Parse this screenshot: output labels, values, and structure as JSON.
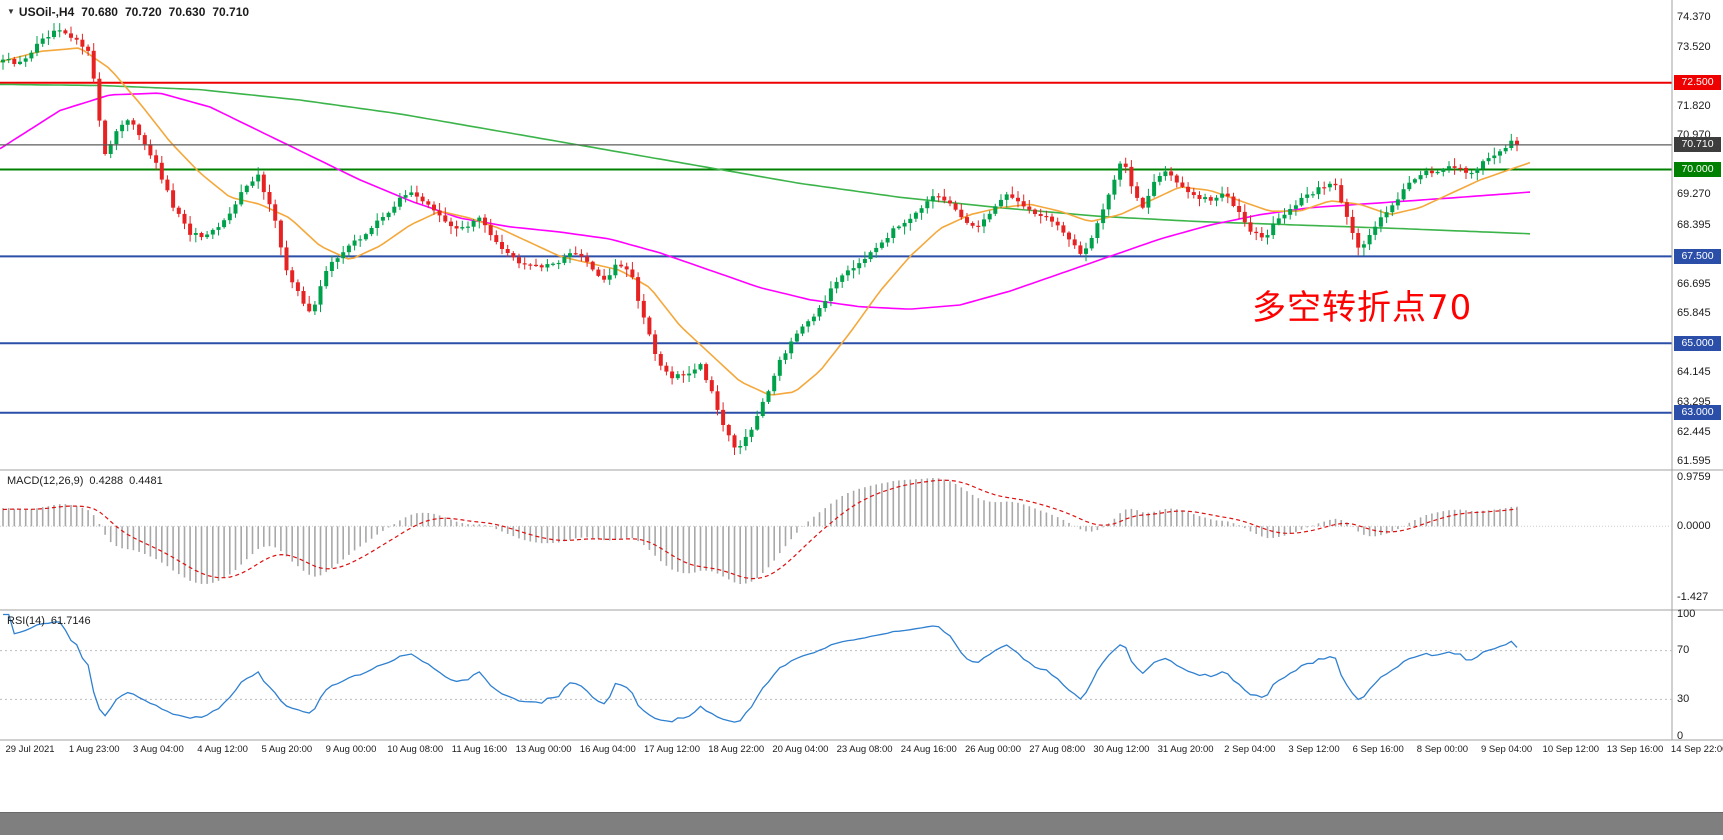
{
  "symbol_bar": {
    "symbol": "USOil-,H4",
    "open": "70.680",
    "high": "70.720",
    "low": "70.630",
    "close": "70.710"
  },
  "macd_panel": {
    "label": "MACD(12,26,9)",
    "values": [
      "0.4288",
      "0.4481"
    ]
  },
  "rsi_panel": {
    "label": "RSI(14)",
    "value": "61.7146"
  },
  "annotation": {
    "text": "多空转折点70",
    "color": "#ff0000"
  },
  "chart_data": {
    "type": "candlestick",
    "symbol": "USOil",
    "timeframe": "H4",
    "current_bar": {
      "open": 70.68,
      "high": 70.72,
      "low": 70.63,
      "close": 70.71
    },
    "price_range": {
      "min": 61.35,
      "max": 74.88
    },
    "num_candles": 268,
    "up_color": "#00a14b",
    "down_color": "#e62222",
    "price_axis_labels": [
      "74.370",
      "73.520",
      "71.820",
      "70.970",
      "69.270",
      "68.395",
      "66.695",
      "65.845",
      "64.145",
      "63.295",
      "62.445",
      "61.595"
    ],
    "time_labels": [
      "29 Jul 2021",
      "1 Aug 23:00",
      "3 Aug 04:00",
      "4 Aug 12:00",
      "5 Aug 20:00",
      "9 Aug 00:00",
      "10 Aug 08:00",
      "11 Aug 16:00",
      "13 Aug 00:00",
      "16 Aug 04:00",
      "17 Aug 12:00",
      "18 Aug 22:00",
      "20 Aug 04:00",
      "23 Aug 08:00",
      "24 Aug 16:00",
      "26 Aug 00:00",
      "27 Aug 08:00",
      "30 Aug 12:00",
      "31 Aug 20:00",
      "2 Sep 04:00",
      "3 Sep 12:00",
      "6 Sep 16:00",
      "8 Sep 00:00",
      "9 Sep 04:00",
      "10 Sep 12:00",
      "13 Sep 16:00",
      "14 Sep 22:00"
    ],
    "hlines": [
      {
        "price": 72.5,
        "label": "72.500",
        "color": "#ee0000",
        "width": 2
      },
      {
        "price": 70.71,
        "label": "70.710",
        "color": "#555555",
        "width": 1,
        "current": true,
        "badge_color": "#3d3d3d"
      },
      {
        "price": 70.0,
        "label": "70.000",
        "color": "#008000",
        "width": 2
      },
      {
        "price": 67.5,
        "label": "67.500",
        "color": "#2b4fa8",
        "width": 2
      },
      {
        "price": 65.0,
        "label": "65.000",
        "color": "#2b4fa8",
        "width": 2
      },
      {
        "price": 63.0,
        "label": "63.000",
        "color": "#2b4fa8",
        "width": 2
      }
    ],
    "close_path_keypoints": [
      [
        0,
        73.2
      ],
      [
        18,
        73.0
      ],
      [
        38,
        73.6
      ],
      [
        58,
        74.0
      ],
      [
        75,
        73.7
      ],
      [
        88,
        73.5
      ],
      [
        96,
        72.2
      ],
      [
        104,
        70.4
      ],
      [
        118,
        71.2
      ],
      [
        132,
        71.4
      ],
      [
        148,
        70.6
      ],
      [
        158,
        70.0
      ],
      [
        172,
        69.0
      ],
      [
        188,
        68.2
      ],
      [
        205,
        68.0
      ],
      [
        222,
        68.4
      ],
      [
        240,
        69.3
      ],
      [
        258,
        69.8
      ],
      [
        272,
        68.9
      ],
      [
        288,
        66.9
      ],
      [
        305,
        66.1
      ],
      [
        312,
        65.9
      ],
      [
        328,
        67.2
      ],
      [
        344,
        67.7
      ],
      [
        360,
        68.0
      ],
      [
        378,
        68.5
      ],
      [
        395,
        69.0
      ],
      [
        412,
        69.4
      ],
      [
        430,
        68.9
      ],
      [
        448,
        68.4
      ],
      [
        465,
        68.3
      ],
      [
        480,
        68.6
      ],
      [
        498,
        67.9
      ],
      [
        515,
        67.4
      ],
      [
        532,
        67.3
      ],
      [
        548,
        67.2
      ],
      [
        565,
        67.5
      ],
      [
        580,
        67.6
      ],
      [
        594,
        67.1
      ],
      [
        605,
        66.8
      ],
      [
        618,
        67.3
      ],
      [
        632,
        66.9
      ],
      [
        645,
        65.6
      ],
      [
        658,
        64.4
      ],
      [
        672,
        64.0
      ],
      [
        686,
        64.1
      ],
      [
        700,
        64.4
      ],
      [
        712,
        63.6
      ],
      [
        724,
        62.6
      ],
      [
        736,
        61.95
      ],
      [
        748,
        62.3
      ],
      [
        762,
        63.2
      ],
      [
        778,
        64.4
      ],
      [
        794,
        65.2
      ],
      [
        810,
        65.6
      ],
      [
        826,
        66.3
      ],
      [
        842,
        67.0
      ],
      [
        858,
        67.3
      ],
      [
        872,
        67.7
      ],
      [
        888,
        68.1
      ],
      [
        904,
        68.5
      ],
      [
        920,
        68.9
      ],
      [
        935,
        69.2
      ],
      [
        950,
        69.0
      ],
      [
        965,
        68.5
      ],
      [
        980,
        68.3
      ],
      [
        995,
        69.0
      ],
      [
        1010,
        69.3
      ],
      [
        1025,
        68.9
      ],
      [
        1040,
        68.7
      ],
      [
        1055,
        68.5
      ],
      [
        1070,
        67.9
      ],
      [
        1082,
        67.5
      ],
      [
        1095,
        68.3
      ],
      [
        1110,
        69.4
      ],
      [
        1122,
        70.3
      ],
      [
        1132,
        69.5
      ],
      [
        1142,
        68.9
      ],
      [
        1155,
        69.7
      ],
      [
        1168,
        70.0
      ],
      [
        1180,
        69.5
      ],
      [
        1195,
        69.2
      ],
      [
        1210,
        69.1
      ],
      [
        1225,
        69.3
      ],
      [
        1240,
        68.8
      ],
      [
        1252,
        68.2
      ],
      [
        1265,
        68.0
      ],
      [
        1278,
        68.6
      ],
      [
        1292,
        68.9
      ],
      [
        1306,
        69.2
      ],
      [
        1320,
        69.5
      ],
      [
        1335,
        69.6
      ],
      [
        1348,
        68.6
      ],
      [
        1360,
        67.6
      ],
      [
        1372,
        68.2
      ],
      [
        1385,
        68.8
      ],
      [
        1398,
        69.2
      ],
      [
        1412,
        69.7
      ],
      [
        1426,
        70.0
      ],
      [
        1440,
        69.9
      ],
      [
        1455,
        70.1
      ],
      [
        1470,
        69.9
      ],
      [
        1484,
        70.2
      ],
      [
        1498,
        70.5
      ],
      [
        1510,
        70.8
      ],
      [
        1517,
        70.71
      ]
    ],
    "ma_lines": [
      {
        "name": "ma-slow-green",
        "color": "#3cb44a",
        "points": [
          [
            0,
            72.45
          ],
          [
            100,
            72.42
          ],
          [
            200,
            72.3
          ],
          [
            300,
            72.0
          ],
          [
            400,
            71.6
          ],
          [
            500,
            71.1
          ],
          [
            600,
            70.6
          ],
          [
            700,
            70.1
          ],
          [
            800,
            69.6
          ],
          [
            900,
            69.2
          ],
          [
            1000,
            68.9
          ],
          [
            1100,
            68.65
          ],
          [
            1200,
            68.5
          ],
          [
            1300,
            68.4
          ],
          [
            1400,
            68.3
          ],
          [
            1530,
            68.15
          ]
        ]
      },
      {
        "name": "ma-mid-magenta",
        "color": "#ff00ff",
        "points": [
          [
            0,
            70.6
          ],
          [
            60,
            71.7
          ],
          [
            110,
            72.15
          ],
          [
            160,
            72.2
          ],
          [
            210,
            71.8
          ],
          [
            260,
            71.1
          ],
          [
            310,
            70.4
          ],
          [
            360,
            69.7
          ],
          [
            410,
            69.1
          ],
          [
            460,
            68.6
          ],
          [
            510,
            68.35
          ],
          [
            560,
            68.2
          ],
          [
            610,
            68.0
          ],
          [
            660,
            67.6
          ],
          [
            710,
            67.1
          ],
          [
            760,
            66.6
          ],
          [
            810,
            66.25
          ],
          [
            860,
            66.05
          ],
          [
            910,
            65.98
          ],
          [
            960,
            66.1
          ],
          [
            1010,
            66.5
          ],
          [
            1060,
            67.0
          ],
          [
            1110,
            67.5
          ],
          [
            1160,
            68.0
          ],
          [
            1210,
            68.4
          ],
          [
            1260,
            68.7
          ],
          [
            1310,
            68.9
          ],
          [
            1360,
            69.0
          ],
          [
            1410,
            69.1
          ],
          [
            1460,
            69.2
          ],
          [
            1530,
            69.35
          ]
        ]
      },
      {
        "name": "ma-fast-orange",
        "color": "#f4a83c",
        "points": [
          [
            0,
            73.1
          ],
          [
            40,
            73.4
          ],
          [
            80,
            73.5
          ],
          [
            110,
            72.9
          ],
          [
            140,
            71.9
          ],
          [
            170,
            70.8
          ],
          [
            200,
            69.9
          ],
          [
            230,
            69.2
          ],
          [
            260,
            69.0
          ],
          [
            290,
            68.6
          ],
          [
            320,
            67.8
          ],
          [
            350,
            67.4
          ],
          [
            380,
            67.8
          ],
          [
            410,
            68.4
          ],
          [
            440,
            68.8
          ],
          [
            470,
            68.6
          ],
          [
            500,
            68.3
          ],
          [
            530,
            67.9
          ],
          [
            560,
            67.5
          ],
          [
            590,
            67.3
          ],
          [
            620,
            67.1
          ],
          [
            650,
            66.6
          ],
          [
            680,
            65.5
          ],
          [
            710,
            64.7
          ],
          [
            740,
            63.9
          ],
          [
            770,
            63.5
          ],
          [
            795,
            63.6
          ],
          [
            820,
            64.2
          ],
          [
            850,
            65.3
          ],
          [
            880,
            66.5
          ],
          [
            910,
            67.5
          ],
          [
            940,
            68.3
          ],
          [
            970,
            68.7
          ],
          [
            1000,
            68.9
          ],
          [
            1030,
            69.0
          ],
          [
            1060,
            68.8
          ],
          [
            1090,
            68.5
          ],
          [
            1120,
            68.7
          ],
          [
            1150,
            69.1
          ],
          [
            1180,
            69.5
          ],
          [
            1210,
            69.4
          ],
          [
            1240,
            69.1
          ],
          [
            1270,
            68.8
          ],
          [
            1300,
            68.8
          ],
          [
            1330,
            69.1
          ],
          [
            1360,
            69.0
          ],
          [
            1390,
            68.7
          ],
          [
            1420,
            68.9
          ],
          [
            1450,
            69.3
          ],
          [
            1480,
            69.7
          ],
          [
            1510,
            70.0
          ],
          [
            1530,
            70.2
          ]
        ]
      }
    ],
    "macd": {
      "label": "MACD(12,26,9)",
      "values": [
        0.4288,
        0.4481
      ],
      "range": [
        -1.6,
        1.05
      ],
      "axis_marks": [
        {
          "value": 0.9759,
          "label": "0.9759"
        },
        {
          "value": 0,
          "label": "0.0000"
        },
        {
          "value": -1.427,
          "label": "-1.427"
        }
      ],
      "histogram_color": "#a8a8a8",
      "signal_color": "#dd1111"
    },
    "rsi": {
      "label": "RSI(14)",
      "value": 61.7146,
      "range": [
        0,
        100
      ],
      "levels": [
        70,
        30
      ],
      "axis_marks": [
        {
          "value": 100,
          "label": "100"
        },
        {
          "value": 70,
          "label": "70"
        },
        {
          "value": 30,
          "label": "30"
        },
        {
          "value": 0,
          "label": "0"
        }
      ],
      "line_color": "#2f80d0"
    }
  }
}
